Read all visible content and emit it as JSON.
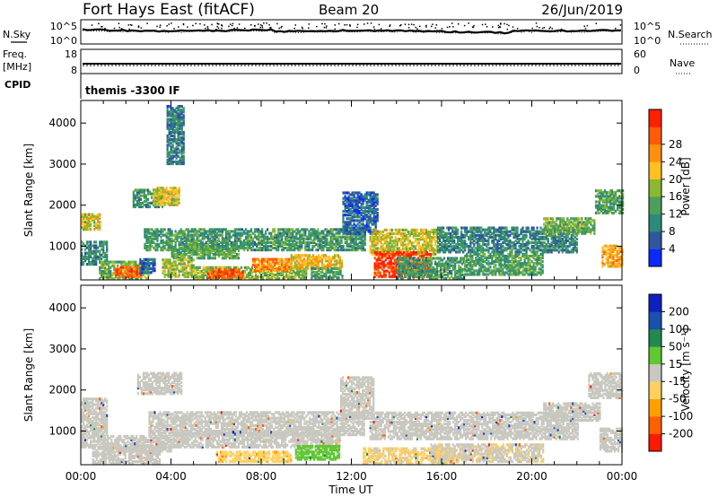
{
  "header": {
    "station": "Fort Hays East (fitACF)",
    "beam": "Beam 20",
    "date": "26/Jun/2019"
  },
  "noise_panel": {
    "left_label": "N.Sky",
    "right_label": "N.Search",
    "left_ticks": [
      "10^5",
      "10^0"
    ],
    "right_ticks": [
      "10^5",
      "10^0"
    ]
  },
  "freq_panel": {
    "left_label_1": "Freq.",
    "left_label_2": "[MHz]",
    "left_label_3": "CPID",
    "right_label": "Nave",
    "left_ticks": [
      "18",
      "8"
    ],
    "right_ticks": [
      "60",
      "0"
    ]
  },
  "cpid_text": "themis -3300 IF",
  "colors": {
    "power": [
      "#0a2aff",
      "#2f56a0",
      "#2e8a78",
      "#4aa05a",
      "#8ab830",
      "#ffc020",
      "#ff9010",
      "#ff5a08",
      "#ff2000"
    ],
    "velocity": [
      "#ff1800",
      "#ff6000",
      "#ffa000",
      "#ffd060",
      "#c8c8c0",
      "#60c830",
      "#208a50",
      "#1a50b0",
      "#1020c0"
    ]
  },
  "chart_data": [
    {
      "type": "heatmap",
      "name": "power",
      "xlabel": "",
      "ylabel": "Slant Range [km]",
      "xlim": [
        0,
        24
      ],
      "ylim": [
        180,
        4550
      ],
      "yticks": [
        1000,
        2000,
        3000,
        4000
      ],
      "colorbar_label": "Power [dB]",
      "colorbar_ticks": [
        "4",
        "8",
        "12",
        "16",
        "20",
        "24",
        "28"
      ],
      "colorbar_range": [
        0,
        32
      ],
      "regions": [
        {
          "t": [
            0.0,
            0.8
          ],
          "r": [
            1400,
            1800
          ],
          "v": 18
        },
        {
          "t": [
            0.0,
            1.2
          ],
          "r": [
            550,
            1100
          ],
          "v": 9
        },
        {
          "t": [
            0.8,
            3.0
          ],
          "r": [
            200,
            650
          ],
          "v": 14
        },
        {
          "t": [
            1.5,
            2.7
          ],
          "r": [
            250,
            500
          ],
          "v": 26
        },
        {
          "t": [
            2.6,
            3.3
          ],
          "r": [
            350,
            700
          ],
          "v": 6
        },
        {
          "t": [
            2.3,
            3.6
          ],
          "r": [
            1950,
            2400
          ],
          "v": 10
        },
        {
          "t": [
            3.2,
            4.4
          ],
          "r": [
            2000,
            2450
          ],
          "v": 18
        },
        {
          "t": [
            2.8,
            12.6
          ],
          "r": [
            900,
            1400
          ],
          "v": 11
        },
        {
          "t": [
            4.0,
            7.0
          ],
          "r": [
            700,
            1000
          ],
          "v": 13
        },
        {
          "t": [
            3.6,
            5.0
          ],
          "r": [
            250,
            700
          ],
          "v": 16
        },
        {
          "t": [
            5.0,
            10.0
          ],
          "r": [
            200,
            500
          ],
          "v": 15
        },
        {
          "t": [
            5.6,
            7.2
          ],
          "r": [
            230,
            450
          ],
          "v": 27
        },
        {
          "t": [
            7.6,
            9.3
          ],
          "r": [
            400,
            700
          ],
          "v": 24
        },
        {
          "t": [
            9.3,
            11.6
          ],
          "r": [
            450,
            800
          ],
          "v": 20
        },
        {
          "t": [
            10.2,
            11.6
          ],
          "r": [
            220,
            450
          ],
          "v": 12
        },
        {
          "t": [
            11.6,
            13.2
          ],
          "r": [
            1300,
            2300
          ],
          "v": 6
        },
        {
          "t": [
            12.8,
            15.8
          ],
          "r": [
            800,
            1400
          ],
          "v": 18
        },
        {
          "t": [
            13.0,
            15.5
          ],
          "r": [
            250,
            850
          ],
          "v": 29
        },
        {
          "t": [
            14.0,
            17.0
          ],
          "r": [
            200,
            700
          ],
          "v": 11
        },
        {
          "t": [
            15.8,
            22.0
          ],
          "r": [
            850,
            1450
          ],
          "v": 9
        },
        {
          "t": [
            17.0,
            20.5
          ],
          "r": [
            300,
            800
          ],
          "v": 12
        },
        {
          "t": [
            20.5,
            22.8
          ],
          "r": [
            1300,
            1700
          ],
          "v": 14
        },
        {
          "t": [
            22.8,
            24.0
          ],
          "r": [
            1800,
            2350
          ],
          "v": 12
        },
        {
          "t": [
            23.1,
            24.0
          ],
          "r": [
            500,
            1000
          ],
          "v": 22
        },
        {
          "t": [
            3.8,
            4.6
          ],
          "r": [
            3000,
            4400
          ],
          "v": 8
        }
      ]
    },
    {
      "type": "heatmap",
      "name": "velocity",
      "xlabel": "Time UT",
      "ylabel": "Slant Range [km]",
      "xlim": [
        0,
        24
      ],
      "ylim": [
        180,
        4550
      ],
      "xticks": [
        "00:00",
        "04:00",
        "08:00",
        "12:00",
        "16:00",
        "20:00",
        "00:00"
      ],
      "yticks": [
        1000,
        2000,
        3000,
        4000
      ],
      "colorbar_label": "Velocity [m s⁻¹]",
      "colorbar_ticks": [
        "-200",
        "-100",
        "-50",
        "-15",
        "15",
        "50",
        "100",
        "200"
      ],
      "colorbar_range": [
        -250,
        250
      ],
      "regions": [
        {
          "t": [
            0.0,
            1.2
          ],
          "r": [
            600,
            1800
          ],
          "v": 0
        },
        {
          "t": [
            0.5,
            3.5
          ],
          "r": [
            200,
            650
          ],
          "v": 5
        },
        {
          "t": [
            1.0,
            4.0
          ],
          "r": [
            500,
            900
          ],
          "v": 0
        },
        {
          "t": [
            2.5,
            4.5
          ],
          "r": [
            1900,
            2400
          ],
          "v": 0
        },
        {
          "t": [
            3.0,
            12.6
          ],
          "r": [
            900,
            1450
          ],
          "v": 0
        },
        {
          "t": [
            4.0,
            11.5
          ],
          "r": [
            600,
            1000
          ],
          "v": 0
        },
        {
          "t": [
            6.0,
            9.3
          ],
          "r": [
            250,
            500
          ],
          "v": -70
        },
        {
          "t": [
            9.5,
            11.5
          ],
          "r": [
            300,
            650
          ],
          "v": 40
        },
        {
          "t": [
            11.5,
            13.0
          ],
          "r": [
            1300,
            2300
          ],
          "v": 0
        },
        {
          "t": [
            12.8,
            22.0
          ],
          "r": [
            800,
            1450
          ],
          "v": 0
        },
        {
          "t": [
            12.5,
            16.5
          ],
          "r": [
            200,
            600
          ],
          "v": -35
        },
        {
          "t": [
            15.5,
            20.5
          ],
          "r": [
            250,
            700
          ],
          "v": -20
        },
        {
          "t": [
            20.5,
            23.0
          ],
          "r": [
            1250,
            1700
          ],
          "v": 0
        },
        {
          "t": [
            22.5,
            24.0
          ],
          "r": [
            1800,
            2400
          ],
          "v": 0
        },
        {
          "t": [
            23.0,
            24.0
          ],
          "r": [
            500,
            1050
          ],
          "v": 0
        }
      ]
    }
  ]
}
